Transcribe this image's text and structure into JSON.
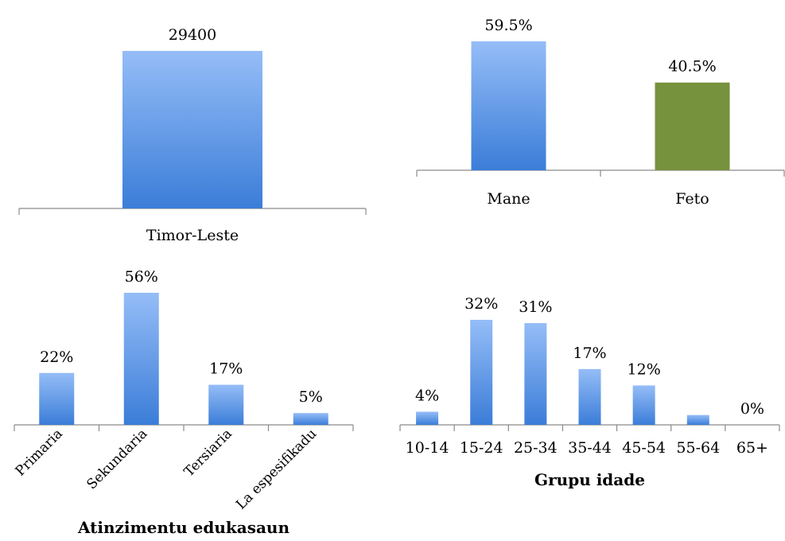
{
  "chart_data": [
    {
      "type": "bar",
      "categories": [
        "Timor-Leste"
      ],
      "values": [
        29400
      ],
      "data_labels": [
        "29400"
      ],
      "ylim": [
        0,
        29400
      ],
      "colors": [
        "gradient-blue"
      ]
    },
    {
      "type": "bar",
      "categories": [
        "Mane",
        "Feto"
      ],
      "values": [
        59.5,
        40.5
      ],
      "data_labels": [
        "59.5%",
        "40.5%"
      ],
      "ylim": [
        0,
        59.5
      ],
      "colors": [
        "gradient-blue",
        "#76923C"
      ]
    },
    {
      "type": "bar",
      "categories": [
        "Primaria",
        "Sekundaria",
        "Tersiaria",
        "La espesifikadu"
      ],
      "values": [
        22,
        56,
        17,
        5
      ],
      "data_labels": [
        "22%",
        "56%",
        "17%",
        "5%"
      ],
      "xlabel": "Atinzimentu edukasaun",
      "ylim": [
        0,
        56
      ],
      "tick_rotation": -45
    },
    {
      "type": "bar",
      "categories": [
        "10-14",
        "15-24",
        "25-34",
        "35-44",
        "45-54",
        "55-64",
        "65+"
      ],
      "values": [
        4,
        32,
        31,
        17,
        12,
        3,
        0
      ],
      "data_labels": [
        "4%",
        "32%",
        "31%",
        "17%",
        "12%",
        "",
        "0%"
      ],
      "xlabel": "Grupu idade",
      "ylim": [
        0,
        32
      ]
    }
  ],
  "colors": {
    "bar_top": "#95BDF7",
    "bar_bottom": "#3B7DD8",
    "green": "#76923C",
    "axis": "#8a8a8a"
  }
}
